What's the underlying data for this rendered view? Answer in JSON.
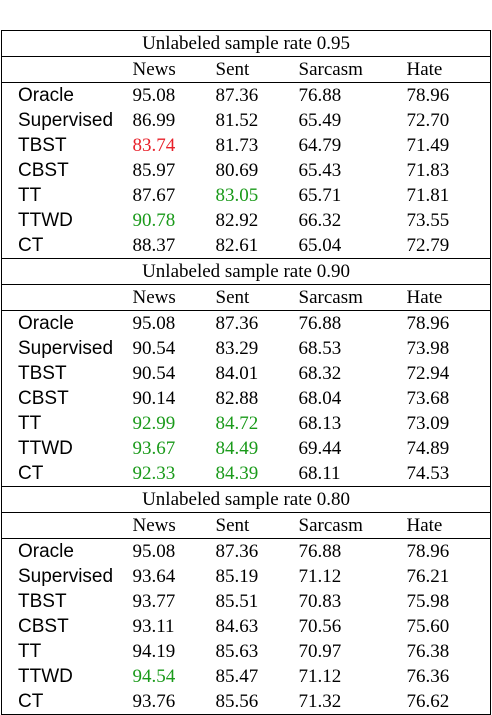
{
  "columns": [
    "",
    "News",
    "Sent",
    "Sarcasm",
    "Hate"
  ],
  "colors": {
    "red": "#e8202a",
    "green": "#1a9a1a"
  },
  "sections": [
    {
      "title": "Unlabeled sample rate 0.95",
      "rows": [
        {
          "method": "Oracle",
          "values": [
            "95.08",
            "87.36",
            "76.88",
            "78.96"
          ],
          "highlight": [
            "",
            "",
            "",
            ""
          ]
        },
        {
          "method": "Supervised",
          "values": [
            "86.99",
            "81.52",
            "65.49",
            "72.70"
          ],
          "highlight": [
            "",
            "",
            "",
            ""
          ]
        },
        {
          "method": "TBST",
          "values": [
            "83.74",
            "81.73",
            "64.79",
            "71.49"
          ],
          "highlight": [
            "red",
            "",
            "",
            ""
          ]
        },
        {
          "method": "CBST",
          "values": [
            "85.97",
            "80.69",
            "65.43",
            "71.83"
          ],
          "highlight": [
            "",
            "",
            "",
            ""
          ]
        },
        {
          "method": "TT",
          "values": [
            "87.67",
            "83.05",
            "65.71",
            "71.81"
          ],
          "highlight": [
            "",
            "green",
            "",
            ""
          ]
        },
        {
          "method": "TTWD",
          "values": [
            "90.78",
            "82.92",
            "66.32",
            "73.55"
          ],
          "highlight": [
            "green",
            "",
            "",
            ""
          ]
        },
        {
          "method": "CT",
          "values": [
            "88.37",
            "82.61",
            "65.04",
            "72.79"
          ],
          "highlight": [
            "",
            "",
            "",
            ""
          ]
        }
      ]
    },
    {
      "title": "Unlabeled sample rate 0.90",
      "rows": [
        {
          "method": "Oracle",
          "values": [
            "95.08",
            "87.36",
            "76.88",
            "78.96"
          ],
          "highlight": [
            "",
            "",
            "",
            ""
          ]
        },
        {
          "method": "Supervised",
          "values": [
            "90.54",
            "83.29",
            "68.53",
            "73.98"
          ],
          "highlight": [
            "",
            "",
            "",
            ""
          ]
        },
        {
          "method": "TBST",
          "values": [
            "90.54",
            "84.01",
            "68.32",
            "72.94"
          ],
          "highlight": [
            "",
            "",
            "",
            ""
          ]
        },
        {
          "method": "CBST",
          "values": [
            "90.14",
            "82.88",
            "68.04",
            "73.68"
          ],
          "highlight": [
            "",
            "",
            "",
            ""
          ]
        },
        {
          "method": "TT",
          "values": [
            "92.99",
            "84.72",
            "68.13",
            "73.09"
          ],
          "highlight": [
            "green",
            "green",
            "",
            ""
          ]
        },
        {
          "method": "TTWD",
          "values": [
            "93.67",
            "84.49",
            "69.44",
            "74.89"
          ],
          "highlight": [
            "green",
            "green",
            "",
            ""
          ]
        },
        {
          "method": "CT",
          "values": [
            "92.33",
            "84.39",
            "68.11",
            "74.53"
          ],
          "highlight": [
            "green",
            "green",
            "",
            ""
          ]
        }
      ]
    },
    {
      "title": "Unlabeled sample rate 0.80",
      "rows": [
        {
          "method": "Oracle",
          "values": [
            "95.08",
            "87.36",
            "76.88",
            "78.96"
          ],
          "highlight": [
            "",
            "",
            "",
            ""
          ]
        },
        {
          "method": "Supervised",
          "values": [
            "93.64",
            "85.19",
            "71.12",
            "76.21"
          ],
          "highlight": [
            "",
            "",
            "",
            ""
          ]
        },
        {
          "method": "TBST",
          "values": [
            "93.77",
            "85.51",
            "70.83",
            "75.98"
          ],
          "highlight": [
            "",
            "",
            "",
            ""
          ]
        },
        {
          "method": "CBST",
          "values": [
            "93.11",
            "84.63",
            "70.56",
            "75.60"
          ],
          "highlight": [
            "",
            "",
            "",
            ""
          ]
        },
        {
          "method": "TT",
          "values": [
            "94.19",
            "85.63",
            "70.97",
            "76.38"
          ],
          "highlight": [
            "",
            "",
            "",
            ""
          ]
        },
        {
          "method": "TTWD",
          "values": [
            "94.54",
            "85.47",
            "71.12",
            "76.36"
          ],
          "highlight": [
            "green",
            "",
            "",
            ""
          ]
        },
        {
          "method": "CT",
          "values": [
            "93.76",
            "85.56",
            "71.32",
            "76.62"
          ],
          "highlight": [
            "",
            "",
            "",
            ""
          ]
        }
      ]
    }
  ]
}
